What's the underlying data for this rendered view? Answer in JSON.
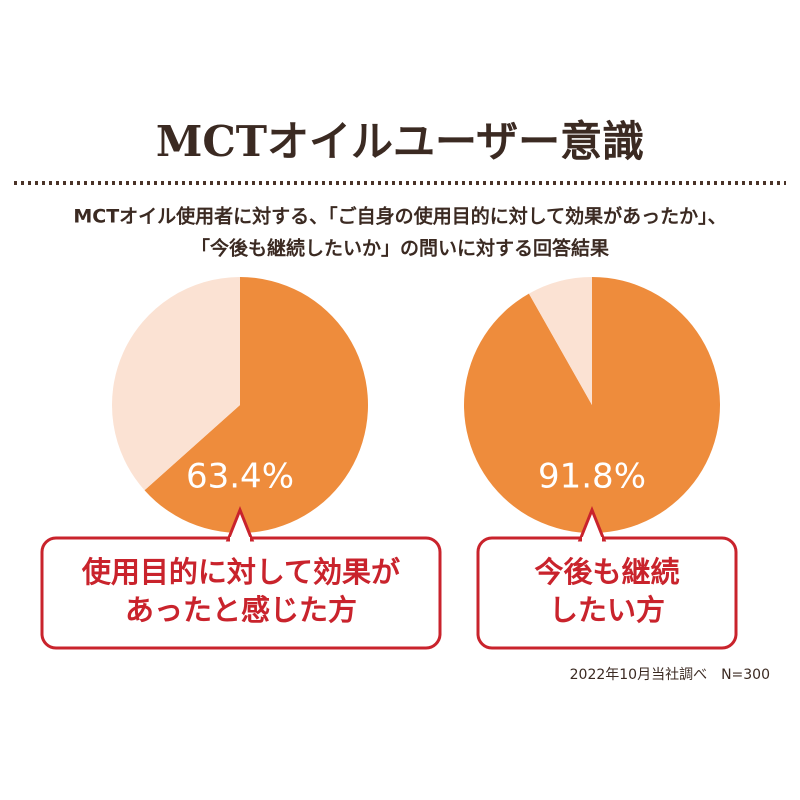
{
  "title": "MCTオイルユーザー意識",
  "subtitle": [
    "MCTオイル使用者に対する、「ご自身の使用目的に対して効果があったか」、",
    "「今後も継続したいか」の問いに対する回答結果"
  ],
  "note": "2022年10月当社調べ　N=300",
  "chart_data": [
    {
      "type": "pie",
      "values": [
        63.4,
        36.6
      ],
      "value_labels": [
        "63.4%",
        null
      ],
      "colors": [
        "#ee8c3c",
        "#fbe2d3"
      ],
      "caption": [
        "使用目的に対して効果が",
        "あったと感じた方"
      ]
    },
    {
      "type": "pie",
      "values": [
        91.8,
        8.2
      ],
      "value_labels": [
        "91.8%",
        null
      ],
      "colors": [
        "#ee8c3c",
        "#fbe2d3"
      ],
      "caption": [
        "今後も継続",
        "したい方"
      ]
    }
  ]
}
